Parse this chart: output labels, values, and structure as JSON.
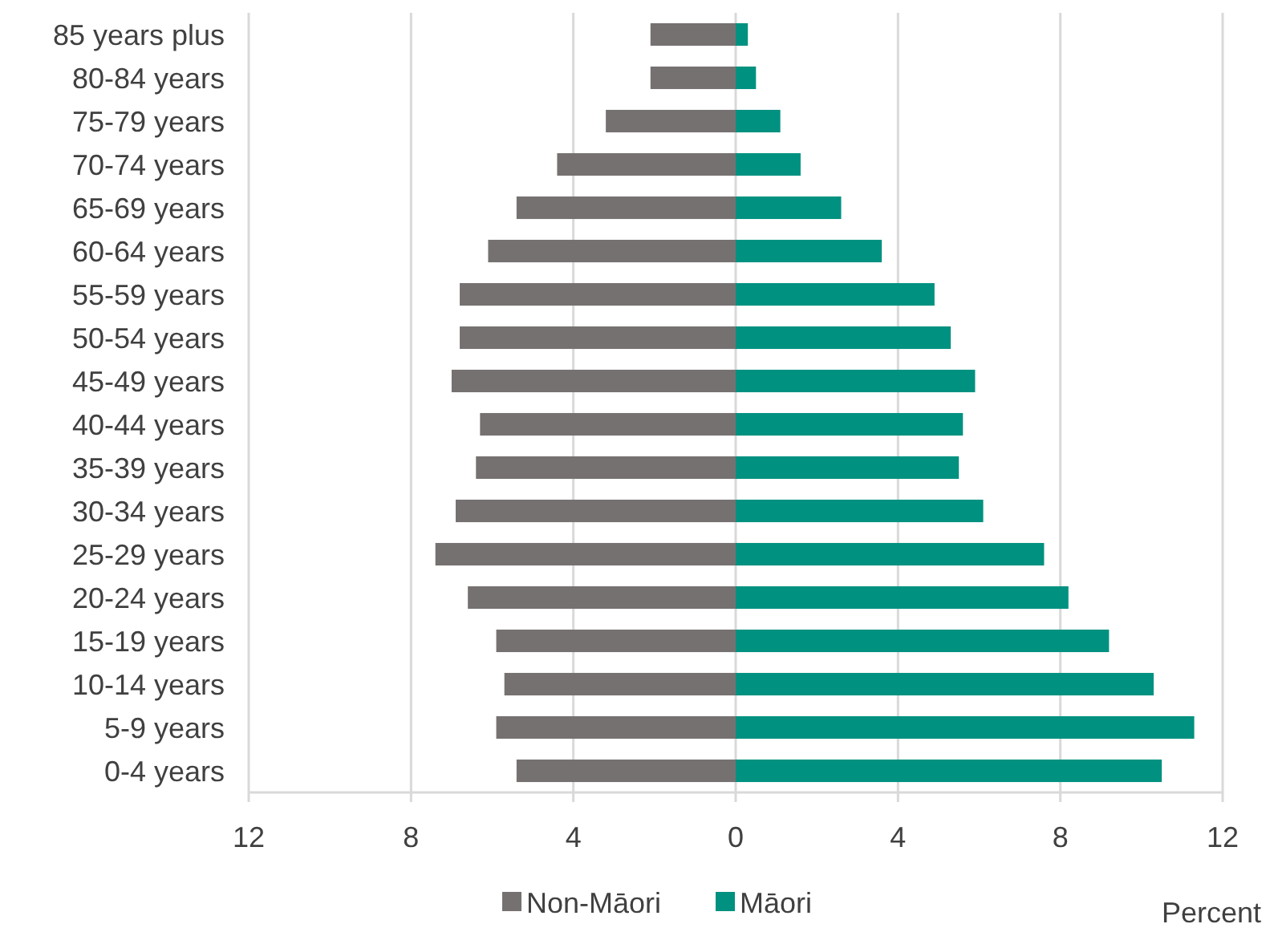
{
  "chart_data": {
    "type": "bar",
    "orientation": "horizontal",
    "xlabel": "Percent",
    "categories": [
      "85 years plus",
      "80-84 years",
      "75-79 years",
      "70-74 years",
      "65-69 years",
      "60-64 years",
      "55-59 years",
      "50-54 years",
      "45-49 years",
      "40-44 years",
      "35-39 years",
      "30-34 years",
      "25-29 years",
      "20-24 years",
      "15-19 years",
      "10-14 years",
      "5-9 years",
      "0-4 years"
    ],
    "series": [
      {
        "name": "Non-Māori",
        "color": "#767171",
        "values": [
          -2.1,
          -2.1,
          -3.2,
          -4.4,
          -5.4,
          -6.1,
          -6.8,
          -6.8,
          -7.0,
          -6.3,
          -6.4,
          -6.9,
          -7.4,
          -6.6,
          -5.9,
          -5.7,
          -5.9,
          -5.4
        ]
      },
      {
        "name": "Māori",
        "color": "#009180",
        "values": [
          0.3,
          0.5,
          1.1,
          1.6,
          2.6,
          3.6,
          4.9,
          5.3,
          5.9,
          5.6,
          5.5,
          6.1,
          7.6,
          8.2,
          9.2,
          10.3,
          11.3,
          10.5
        ]
      }
    ],
    "xlim": [
      -12,
      12
    ],
    "xticks": [
      {
        "value": -12,
        "label": "12"
      },
      {
        "value": -8,
        "label": "8"
      },
      {
        "value": -4,
        "label": "4"
      },
      0,
      4,
      8,
      12
    ],
    "grid": "x",
    "legend": "bottom",
    "stacked": true
  }
}
